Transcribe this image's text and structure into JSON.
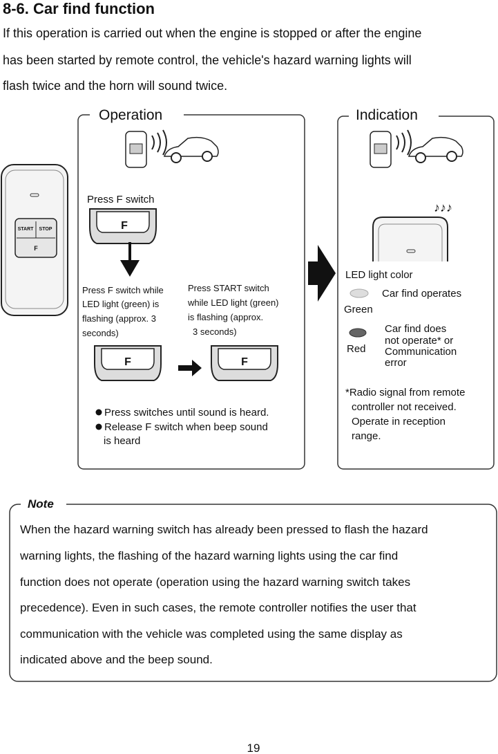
{
  "heading": "8-6. Car find function",
  "intro": {
    "lines": [
      "If this operation is carried out when the engine is stopped or after the engine",
      "has been started by remote control, the vehicle's hazard warning lights will",
      "flash twice and the horn will sound twice."
    ]
  },
  "remote": {
    "buttons": [
      "START",
      "STOP",
      "F"
    ]
  },
  "operation": {
    "title": "Operation",
    "step1": "Press F switch",
    "switch_label": "F",
    "step2": [
      "Press F switch while",
      "LED light (green) is",
      "flashing (approx. 3",
      "seconds)"
    ],
    "step3": [
      "Press START switch",
      "while LED light (green)",
      "is flashing (approx.",
      "3 seconds)"
    ],
    "bullets": [
      [
        "Press switches until sound is heard."
      ],
      [
        "Release F switch when beep sound",
        "is heard"
      ]
    ]
  },
  "indication": {
    "title": "Indication",
    "led_title": "LED light color",
    "green": {
      "color": "Green",
      "text": [
        "Car find operates"
      ]
    },
    "red": {
      "color": "Red",
      "text": [
        "Car find does",
        "not operate* or",
        "Communication",
        "error"
      ]
    },
    "footnote": [
      "*Radio signal from remote",
      "controller not received.",
      "Operate in reception",
      "range."
    ]
  },
  "note": {
    "title": "Note",
    "lines": [
      "When the hazard warning switch has already been pressed to flash the hazard",
      "warning lights, the flashing of the hazard warning lights using the car find",
      "function does not operate (operation using the hazard warning switch takes",
      "precedence). Even in such cases, the remote controller notifies the user that",
      "communication with the vehicle was completed using the same display as",
      "indicated above and the beep sound."
    ]
  },
  "page_number": "19"
}
